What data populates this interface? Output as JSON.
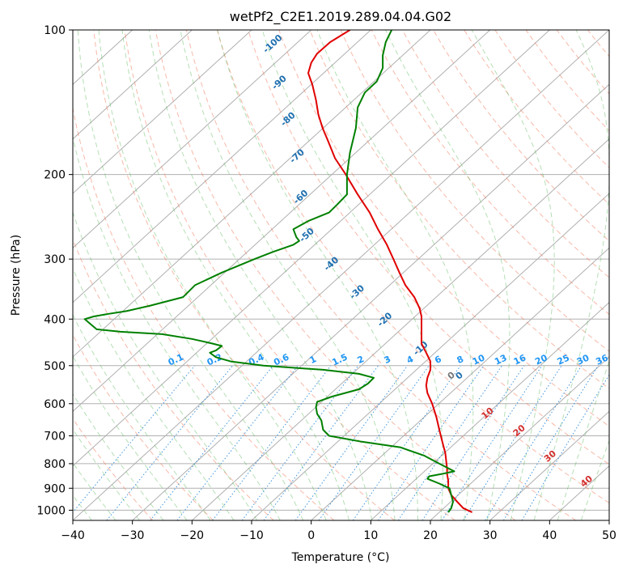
{
  "chart_data": {
    "type": "line",
    "title": "wetPf2_C2E1.2019.289.04.04.G02",
    "xlabel": "Temperature (°C)",
    "ylabel": "Pressure (hPa)",
    "xlim": [
      -40,
      50
    ],
    "ylim": [
      1050,
      100
    ],
    "y_scale": "log",
    "x_ticks": [
      -40,
      -30,
      -20,
      -10,
      0,
      10,
      20,
      30,
      40,
      50
    ],
    "x_tick_labels": [
      "−40",
      "−30",
      "−20",
      "−10",
      "0",
      "10",
      "20",
      "30",
      "40",
      "50"
    ],
    "y_ticks": [
      100,
      200,
      300,
      400,
      500,
      600,
      700,
      800,
      900,
      1000
    ],
    "y_tick_labels": [
      "100",
      "200",
      "300",
      "400",
      "500",
      "600",
      "700",
      "800",
      "900",
      "1000"
    ],
    "grid": true,
    "skewed_isotherm_labels": [
      {
        "text": "-100",
        "p": 108,
        "t": -93.2
      },
      {
        "text": "-90",
        "p": 130,
        "t": -85.0
      },
      {
        "text": "-80",
        "p": 155,
        "t": -76.8
      },
      {
        "text": "-70",
        "p": 185,
        "t": -68.5
      },
      {
        "text": "-60",
        "p": 225,
        "t": -60.4
      },
      {
        "text": "-50",
        "p": 270,
        "t": -52.4
      },
      {
        "text": "-40",
        "p": 310,
        "t": -43.0
      },
      {
        "text": "-30",
        "p": 355,
        "t": -33.5
      },
      {
        "text": "-20",
        "p": 405,
        "t": -23.8
      },
      {
        "text": "-10",
        "p": 465,
        "t": -12.5
      },
      {
        "text": "0",
        "p": 530,
        "t": -1.0
      }
    ],
    "mixing_ratio_labels": [
      {
        "text": "0.1",
        "t": -22.5
      },
      {
        "text": "0.2",
        "t": -16.0
      },
      {
        "text": "0.4",
        "t": -9.0
      },
      {
        "text": "0.6",
        "t": -4.8
      },
      {
        "text": "1",
        "t": 0.5
      },
      {
        "text": "1.5",
        "t": 5.0
      },
      {
        "text": "2",
        "t": 8.5
      },
      {
        "text": "3",
        "t": 13.0
      },
      {
        "text": "4",
        "t": 16.8
      },
      {
        "text": "6",
        "t": 21.5
      },
      {
        "text": "8",
        "t": 25.2
      },
      {
        "text": "10",
        "t": 28.3
      },
      {
        "text": "13",
        "t": 32.0
      },
      {
        "text": "16",
        "t": 35.2
      },
      {
        "text": "20",
        "t": 38.8
      },
      {
        "text": "25",
        "t": 42.5
      },
      {
        "text": "30",
        "t": 45.8
      },
      {
        "text": "36",
        "t": 49.0
      }
    ],
    "pseudoadiabat_labels": [
      {
        "text": "0",
        "p": 530,
        "t": 23.8,
        "color": "#777777"
      },
      {
        "text": "10",
        "p": 635,
        "t": 29.9,
        "color": "#d32f2f"
      },
      {
        "text": "20",
        "p": 690,
        "t": 35.2,
        "color": "#d32f2f"
      },
      {
        "text": "30",
        "p": 780,
        "t": 40.4,
        "color": "#d32f2f"
      },
      {
        "text": "40",
        "p": 880,
        "t": 46.5,
        "color": "#d32f2f"
      }
    ],
    "series": [
      {
        "color": "#e00000",
        "pressure": [
          1010,
          990,
          960,
          930,
          900,
          870,
          840,
          820,
          800,
          760,
          720,
          680,
          640,
          600,
          570,
          550,
          530,
          510,
          490,
          470,
          450,
          430,
          410,
          395,
          380,
          360,
          340,
          320,
          300,
          280,
          260,
          240,
          220,
          200,
          185,
          170,
          160,
          150,
          140,
          130,
          123,
          117,
          112,
          106,
          100
        ],
        "values": [
          27.0,
          25.5,
          24.5,
          23.5,
          23.0,
          23.0,
          22.8,
          22.8,
          22.7,
          22.5,
          22.0,
          21.5,
          21.0,
          20.3,
          19.5,
          19.3,
          19.5,
          20.0,
          20.0,
          19.3,
          18.5,
          18.5,
          18.5,
          18.5,
          18.2,
          17.3,
          15.8,
          14.8,
          13.8,
          12.7,
          11.2,
          9.8,
          7.8,
          5.8,
          4.0,
          2.8,
          1.9,
          1.2,
          0.8,
          0.2,
          -0.5,
          0.0,
          1.0,
          3.2,
          6.5
        ]
      },
      {
        "color": "#008000",
        "pressure": [
          1010,
          990,
          960,
          930,
          900,
          880,
          860,
          850,
          840,
          830,
          800,
          770,
          740,
          720,
          700,
          680,
          650,
          630,
          610,
          595,
          580,
          560,
          545,
          530,
          520,
          510,
          500,
          490,
          480,
          470,
          465,
          460,
          455,
          450,
          440,
          430,
          425,
          420,
          410,
          400,
          395,
          390,
          385,
          375,
          360,
          340,
          320,
          300,
          290,
          280,
          275,
          270,
          260,
          250,
          240,
          230,
          220,
          210,
          200,
          180,
          160,
          145,
          135,
          128,
          120,
          113,
          106,
          100
        ],
        "values": [
          23.0,
          23.5,
          23.8,
          23.5,
          23.2,
          21.5,
          19.5,
          19.8,
          22.0,
          24.0,
          21.5,
          19.0,
          15.0,
          8.5,
          3.0,
          2.0,
          1.7,
          1.0,
          0.8,
          1.0,
          3.5,
          8.0,
          9.5,
          10.5,
          8.0,
          2.0,
          -8.0,
          -13.5,
          -16.0,
          -17.0,
          -16.0,
          -15.5,
          -15.0,
          -16.5,
          -20.0,
          -25.0,
          -32.0,
          -36.0,
          -37.0,
          -38.0,
          -36.5,
          -34.0,
          -31.0,
          -27.0,
          -21.5,
          -19.5,
          -15.0,
          -9.5,
          -6.5,
          -3.0,
          -2.0,
          -2.5,
          -3.0,
          -0.5,
          3.0,
          4.5,
          6.0,
          6.0,
          6.0,
          6.5,
          7.5,
          7.8,
          9.0,
          11.0,
          12.0,
          12.0,
          12.5,
          13.5
        ]
      }
    ]
  }
}
